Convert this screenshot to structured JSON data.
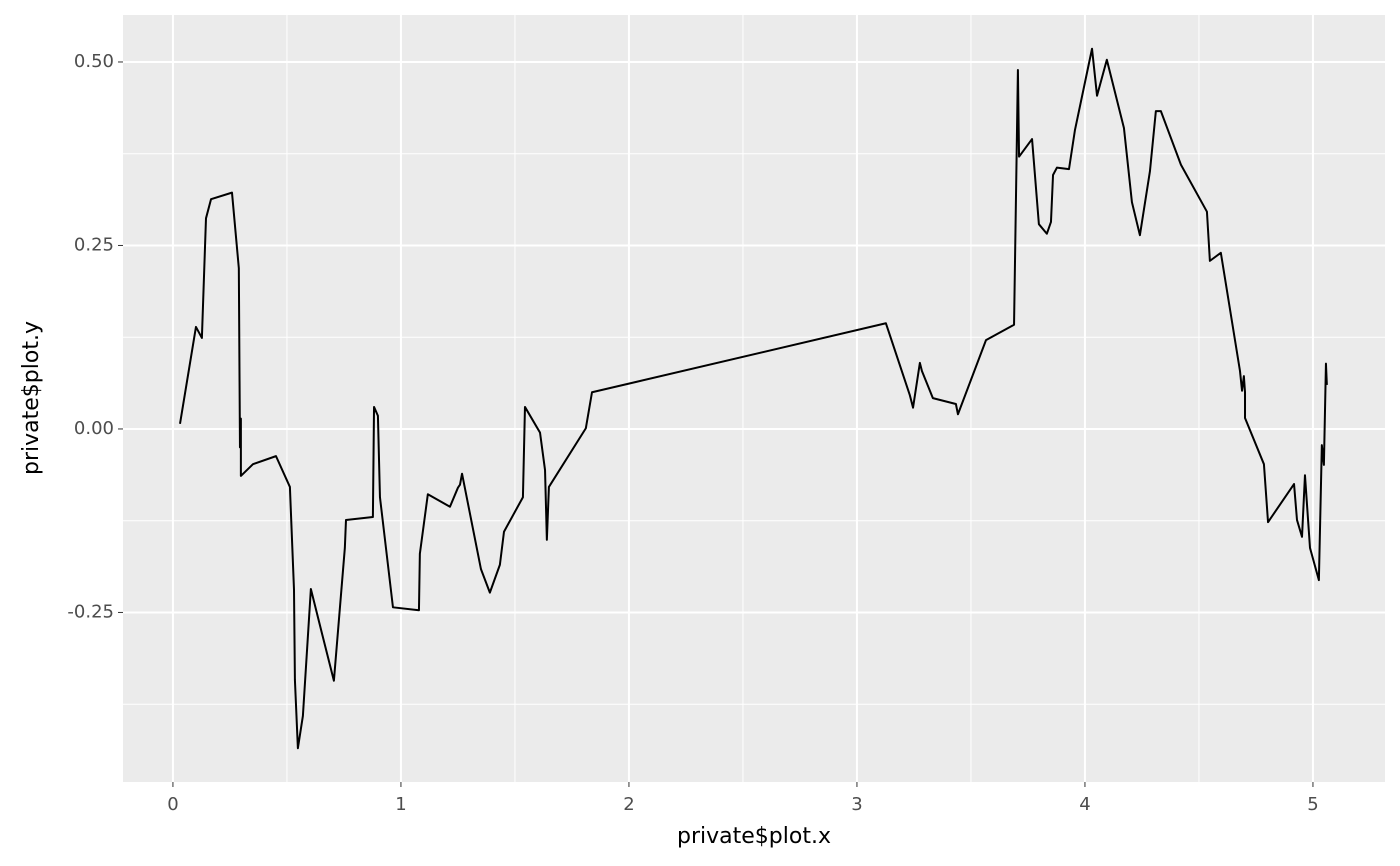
{
  "chart_data": {
    "type": "line",
    "x_label": "private$plot.x",
    "y_label": "private$plot.y",
    "xlim": [
      -0.219,
      5.316
    ],
    "ylim": [
      -0.481,
      0.564
    ],
    "xticks": [
      0,
      1,
      2,
      3,
      4,
      5
    ],
    "yticks": [
      {
        "value": -0.25,
        "label": "-0.25"
      },
      {
        "value": 0,
        "label": "0.00"
      },
      {
        "value": 0.25,
        "label": "0.25"
      },
      {
        "value": 0.5,
        "label": "0.50"
      }
    ],
    "grid": true,
    "color": "#000000",
    "x": [
      0.031,
      0.101,
      0.127,
      0.145,
      0.167,
      0.259,
      0.289,
      0.294,
      0.298,
      0.298,
      0.351,
      0.452,
      0.513,
      0.531,
      0.535,
      0.548,
      0.57,
      0.605,
      0.654,
      0.706,
      0.754,
      0.759,
      0.877,
      0.882,
      0.899,
      0.908,
      0.965,
      1.079,
      1.083,
      1.118,
      1.215,
      1.25,
      1.259,
      1.268,
      1.351,
      1.39,
      1.434,
      1.452,
      1.535,
      1.544,
      1.61,
      1.632,
      1.64,
      1.649,
      1.811,
      1.838,
      3.127,
      3.232,
      3.246,
      3.276,
      3.285,
      3.333,
      3.434,
      3.443,
      3.566,
      3.689,
      3.706,
      3.711,
      3.768,
      3.798,
      3.833,
      3.851,
      3.86,
      3.877,
      3.93,
      3.956,
      4.031,
      4.053,
      4.096,
      4.171,
      4.206,
      4.241,
      4.285,
      4.311,
      4.333,
      4.421,
      4.535,
      4.548,
      4.596,
      4.68,
      4.689,
      4.697,
      4.702,
      4.702,
      4.785,
      4.803,
      4.917,
      4.93,
      4.952,
      4.965,
      4.987,
      5.026,
      5.039,
      5.048,
      5.057,
      5.061
    ],
    "values": [
      0.007,
      0.139,
      0.124,
      0.287,
      0.313,
      0.322,
      0.219,
      -0.025,
      0.014,
      -0.064,
      -0.048,
      -0.037,
      -0.079,
      -0.219,
      -0.342,
      -0.435,
      -0.391,
      -0.218,
      -0.279,
      -0.343,
      -0.162,
      -0.124,
      -0.12,
      0.03,
      0.018,
      -0.093,
      -0.243,
      -0.247,
      -0.17,
      -0.089,
      -0.106,
      -0.08,
      -0.076,
      -0.061,
      -0.191,
      -0.223,
      -0.185,
      -0.14,
      -0.093,
      0.03,
      -0.005,
      -0.056,
      -0.151,
      -0.079,
      0.001,
      0.05,
      0.144,
      0.046,
      0.029,
      0.09,
      0.079,
      0.042,
      0.034,
      0.02,
      0.121,
      0.142,
      0.489,
      0.371,
      0.395,
      0.279,
      0.266,
      0.282,
      0.346,
      0.356,
      0.354,
      0.407,
      0.518,
      0.454,
      0.503,
      0.41,
      0.309,
      0.264,
      0.351,
      0.433,
      0.433,
      0.36,
      0.296,
      0.229,
      0.24,
      0.079,
      0.052,
      0.072,
      0.05,
      0.015,
      -0.048,
      -0.127,
      -0.075,
      -0.124,
      -0.147,
      -0.063,
      -0.162,
      -0.206,
      -0.022,
      -0.049,
      0.089,
      0.06
    ]
  }
}
